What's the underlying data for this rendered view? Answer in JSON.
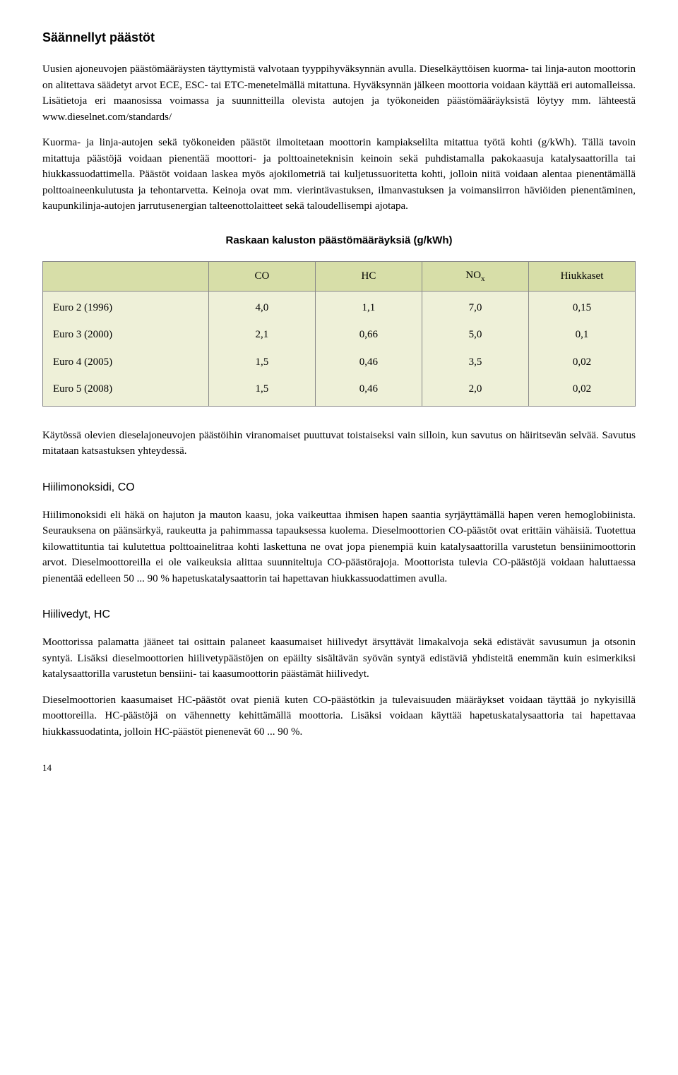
{
  "section1": {
    "title": "Säännellyt päästöt",
    "para1": "Uusien ajoneuvojen päästömääräysten täyttymistä valvotaan tyyppihyväksynnän avulla. Dieselkäyttöisen kuorma- tai linja-auton moottorin on alitettava säädetyt arvot ECE, ESC- tai ETC-menetelmällä mitattuna. Hyväksynnän jälkeen moottoria voidaan käyttää eri automalleissa. Lisätietoja eri maanosissa voimassa ja suunnitteilla olevista autojen ja työkoneiden päästömääräyksistä löytyy mm. lähteestä www.dieselnet.com/standards/",
    "para2": "Kuorma- ja linja-autojen sekä työkoneiden päästöt ilmoitetaan moottorin kampiakselilta mitattua työtä kohti (g/kWh). Tällä tavoin mitattuja päästöjä voidaan pienentää moottori- ja polttoaineteknisin keinoin sekä puhdistamalla pakokaasuja katalysaattorilla tai hiukkassuodattimella. Päästöt voidaan laskea myös ajokilometriä tai kuljetussuoritetta kohti, jolloin niitä voidaan alentaa pienentämällä polttoaineenkulutusta ja tehontarvetta. Keinoja ovat mm. vierintävastuksen, ilmanvastuksen ja voimansiirron häviöiden pienentäminen, kaupunkilinja-autojen jarrutusenergian talteenottolaitteet sekä taloudellisempi ajotapa."
  },
  "table": {
    "title": "Raskaan kaluston päästömääräyksiä (g/kWh)",
    "header_bg": "#d7dea8",
    "body_bg": "#eef0d8",
    "border_color": "#888888",
    "columns": [
      "",
      "CO",
      "HC",
      "NOₓ",
      "Hiukkaset"
    ],
    "col_co": "CO",
    "col_hc": "HC",
    "col_nox": "NO",
    "col_nox_sub": "x",
    "col_hiukk": "Hiukkaset",
    "rows": [
      {
        "label": "Euro 2 (1996)",
        "co": "4,0",
        "hc": "1,1",
        "nox": "7,0",
        "hiukk": "0,15"
      },
      {
        "label": "Euro 3 (2000)",
        "co": "2,1",
        "hc": "0,66",
        "nox": "5,0",
        "hiukk": "0,1"
      },
      {
        "label": "Euro 4 (2005)",
        "co": "1,5",
        "hc": "0,46",
        "nox": "3,5",
        "hiukk": "0,02"
      },
      {
        "label": "Euro 5 (2008)",
        "co": "1,5",
        "hc": "0,46",
        "nox": "2,0",
        "hiukk": "0,02"
      }
    ]
  },
  "post_table_para": "Käytössä olevien dieselajoneuvojen päästöihin viranomaiset puuttuvat toistaiseksi vain silloin, kun savutus on häiritsevän selvää. Savutus mitataan katsastuksen yhteydessä.",
  "section_co": {
    "title": "Hiilimonoksidi, CO",
    "para": "Hiilimonoksidi eli häkä on hajuton ja mauton kaasu, joka vaikeuttaa ihmisen hapen saantia syrjäyttämällä hapen veren hemoglobiinista. Seurauksena on päänsärkyä, raukeutta ja pahimmassa tapauksessa kuolema. Dieselmoottorien CO-päästöt ovat erittäin vähäisiä. Tuotettua kilowattituntia tai kulutettua polttoainelitraa kohti laskettuna ne ovat jopa pienempiä kuin katalysaattorilla varustetun bensiinimoottorin arvot. Dieselmoottoreilla ei ole vaikeuksia alittaa suunniteltuja CO-päästörajoja. Moottorista tulevia CO-päästöjä voidaan haluttaessa pienentää edelleen 50 ... 90 % hapetuskatalysaattorin tai hapettavan hiukkassuodattimen avulla."
  },
  "section_hc": {
    "title": "Hiilivedyt, HC",
    "para1": "Moottorissa palamatta jääneet tai osittain palaneet kaasumaiset hiilivedyt ärsyttävät limakalvoja sekä edistävät savusumun ja otsonin syntyä. Lisäksi dieselmoottorien hiilivetypäästöjen on epäilty sisältävän syövän syntyä edistäviä yhdisteitä enemmän kuin esimerkiksi katalysaattorilla varustetun bensiini- tai kaasumoottorin päästämät hiilivedyt.",
    "para2": "Dieselmoottorien kaasumaiset HC-päästöt ovat pieniä kuten CO-päästötkin ja tulevaisuuden määräykset voidaan täyttää jo nykyisillä moottoreilla. HC-päästöjä on vähennetty kehittämällä moottoria. Lisäksi voidaan käyttää hapetuskatalysaattoria tai hapettavaa hiukkassuodatinta, jolloin HC-päästöt pienenevät 60 ... 90 %."
  },
  "page_number": "14"
}
